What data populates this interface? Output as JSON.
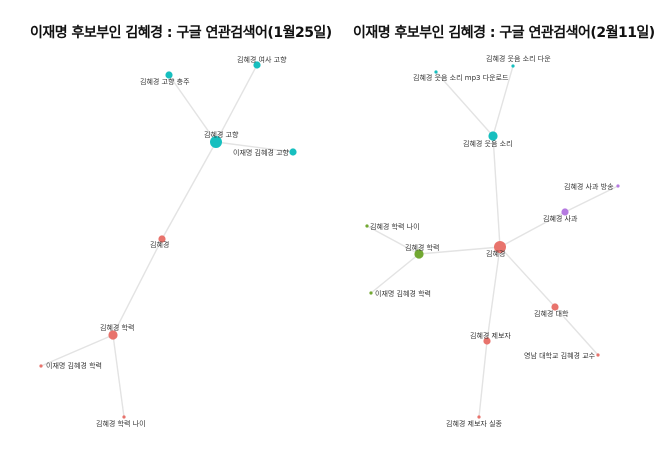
{
  "left_panel": {
    "title": "이재명 후보부인 김혜경 : 구글 연관검색어(1월25일)",
    "nodes": [
      {
        "id": "l_hometown",
        "label": "김혜경 고향",
        "color": "#17bfbf",
        "size": "large"
      },
      {
        "id": "l_woman_hometown",
        "label": "김혜경 여사 고향",
        "color": "#17bfbf",
        "size": "small"
      },
      {
        "id": "l_hometown_chungju",
        "label": "김혜경 고향 충주",
        "color": "#17bfbf",
        "size": "small"
      },
      {
        "id": "l_lee_hometown",
        "label": "이재명 김혜경 고향",
        "color": "#17bfbf",
        "size": "small"
      },
      {
        "id": "l_center",
        "label": "김혜경",
        "color": "#e8736c",
        "size": "small"
      },
      {
        "id": "l_education",
        "label": "김혜경 학력",
        "color": "#e8736c",
        "size": "medium"
      },
      {
        "id": "l_lee_education",
        "label": "이재명 김혜경 학력",
        "color": "#e8736c",
        "size": "tiny"
      },
      {
        "id": "l_education_age",
        "label": "김혜경 학력 나이",
        "color": "#e8736c",
        "size": "tiny"
      }
    ],
    "edges": [
      [
        "l_hometown",
        "l_woman_hometown"
      ],
      [
        "l_hometown",
        "l_hometown_chungju"
      ],
      [
        "l_hometown",
        "l_lee_hometown"
      ],
      [
        "l_hometown",
        "l_center"
      ],
      [
        "l_center",
        "l_education"
      ],
      [
        "l_education",
        "l_lee_education"
      ],
      [
        "l_education",
        "l_education_age"
      ]
    ]
  },
  "right_panel": {
    "title": "이재명 후보부인 김혜경 : 구글 연관검색어(2월11일)",
    "nodes": [
      {
        "id": "r_laugh",
        "label": "김혜경 웃음 소리",
        "color": "#17bfbf",
        "size": "medium"
      },
      {
        "id": "r_laugh_download",
        "label": "김혜경 웃음 소리 다운",
        "color": "#17bfbf",
        "size": "tiny"
      },
      {
        "id": "r_laugh_mp3",
        "label": "김혜경 웃음 소리 mp3 다운로드",
        "color": "#17bfbf",
        "size": "tiny"
      },
      {
        "id": "r_center",
        "label": "김혜경",
        "color": "#e8736c",
        "size": "large"
      },
      {
        "id": "r_apology_broadcast",
        "label": "김혜경 사과 방송",
        "color": "#b57ae0",
        "size": "tiny"
      },
      {
        "id": "r_apology",
        "label": "김혜경 사과",
        "color": "#b57ae0",
        "size": "small"
      },
      {
        "id": "r_education_age",
        "label": "김혜경 학력 나이",
        "color": "#72a832",
        "size": "tiny"
      },
      {
        "id": "r_education",
        "label": "김혜경 학력",
        "color": "#72a832",
        "size": "medium"
      },
      {
        "id": "r_lee_education",
        "label": "이재명 김혜경 학력",
        "color": "#72a832",
        "size": "tiny"
      },
      {
        "id": "r_university",
        "label": "김혜경 대학",
        "color": "#e8736c",
        "size": "small"
      },
      {
        "id": "r_yeungnam",
        "label": "영남 대학교 김혜경 교수",
        "color": "#e8736c",
        "size": "tiny"
      },
      {
        "id": "r_informant",
        "label": "김혜경 제보자",
        "color": "#e8736c",
        "size": "small"
      },
      {
        "id": "r_informant_missing",
        "label": "김혜경 제보자 실종",
        "color": "#e8736c",
        "size": "tiny"
      }
    ],
    "edges": [
      [
        "r_laugh",
        "r_laugh_download"
      ],
      [
        "r_laugh",
        "r_laugh_mp3"
      ],
      [
        "r_laugh",
        "r_center"
      ],
      [
        "r_center",
        "r_apology"
      ],
      [
        "r_apology",
        "r_apology_broadcast"
      ],
      [
        "r_center",
        "r_education"
      ],
      [
        "r_education",
        "r_education_age"
      ],
      [
        "r_education",
        "r_lee_education"
      ],
      [
        "r_center",
        "r_university"
      ],
      [
        "r_university",
        "r_yeungnam"
      ],
      [
        "r_center",
        "r_informant"
      ],
      [
        "r_informant",
        "r_informant_missing"
      ]
    ]
  }
}
